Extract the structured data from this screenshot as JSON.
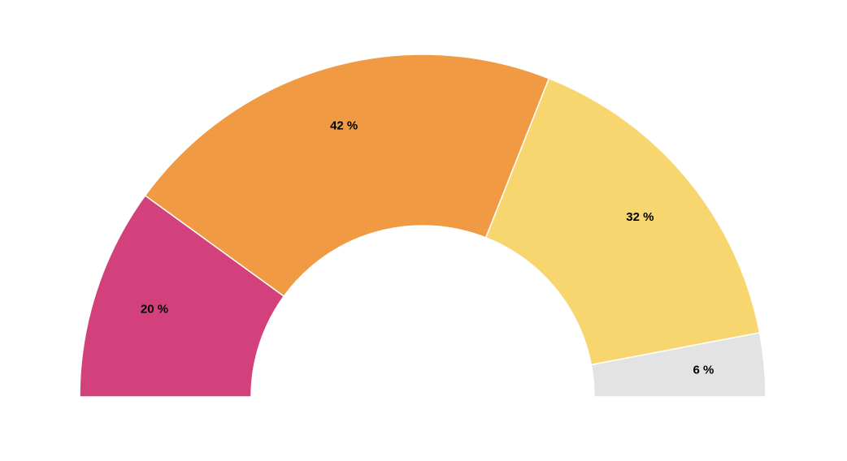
{
  "chart_data": {
    "type": "semi-donut",
    "values": [
      20,
      42,
      32,
      6
    ],
    "value_labels": [
      "20 %",
      "42 %",
      "32 %",
      "6 %"
    ],
    "colors": [
      "#d2417c",
      "#f09a43",
      "#f7d56f",
      "#e3e3e3"
    ]
  }
}
